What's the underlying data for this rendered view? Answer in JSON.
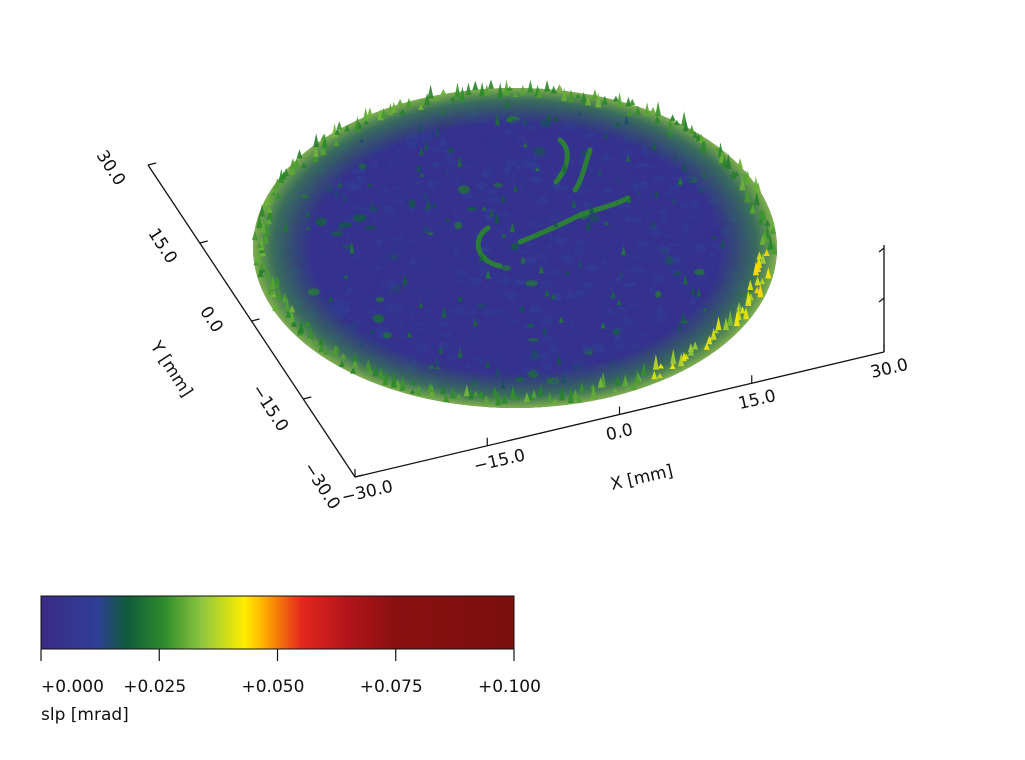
{
  "chart_data": {
    "type": "heatmap",
    "subtype": "3d-surface",
    "title": "",
    "x_axis": {
      "label": "X [mm]",
      "range": [
        -30.0,
        30.0
      ],
      "ticks": [
        -30.0,
        -15.0,
        0.0,
        15.0,
        30.0
      ],
      "tick_labels": [
        "−30.0",
        "−15.0",
        "0.0",
        "15.0",
        "30.0"
      ]
    },
    "y_axis": {
      "label": "Y [mm]",
      "range": [
        -30.0,
        30.0
      ],
      "ticks": [
        -30.0,
        -15.0,
        0.0,
        15.0,
        30.0
      ],
      "tick_labels": [
        "−30.0",
        "−15.0",
        "0.0",
        "15.0",
        "30.0"
      ]
    },
    "surface": {
      "shape": "circular aperture",
      "aperture_radius_mm": 30,
      "background_level": 0.003,
      "rim_level_max": 0.045,
      "features": [
        {
          "kind": "rim ring",
          "level": 0.03
        },
        {
          "kind": "central arc",
          "level": 0.025
        },
        {
          "kind": "scattered spikes",
          "level": 0.02
        }
      ]
    },
    "colorbar": {
      "label": "slp [mrad]",
      "range": [
        0.0,
        0.1
      ],
      "ticks": [
        0.0,
        0.025,
        0.05,
        0.075,
        0.1
      ],
      "tick_labels": [
        "+0.000",
        "+0.025",
        "+0.050",
        "+0.075",
        "+0.100"
      ],
      "colors": [
        {
          "v": 0.0,
          "c": "#3a2a86"
        },
        {
          "v": 0.012,
          "c": "#2f3f95"
        },
        {
          "v": 0.018,
          "c": "#0f5a3c"
        },
        {
          "v": 0.026,
          "c": "#2e8b2b"
        },
        {
          "v": 0.034,
          "c": "#8ec63f"
        },
        {
          "v": 0.043,
          "c": "#ffee00"
        },
        {
          "v": 0.047,
          "c": "#ffb000"
        },
        {
          "v": 0.055,
          "c": "#e5281e"
        },
        {
          "v": 0.065,
          "c": "#b0141a"
        },
        {
          "v": 0.075,
          "c": "#8a1010"
        },
        {
          "v": 0.1,
          "c": "#7a0f0c"
        }
      ]
    },
    "grid": false
  }
}
